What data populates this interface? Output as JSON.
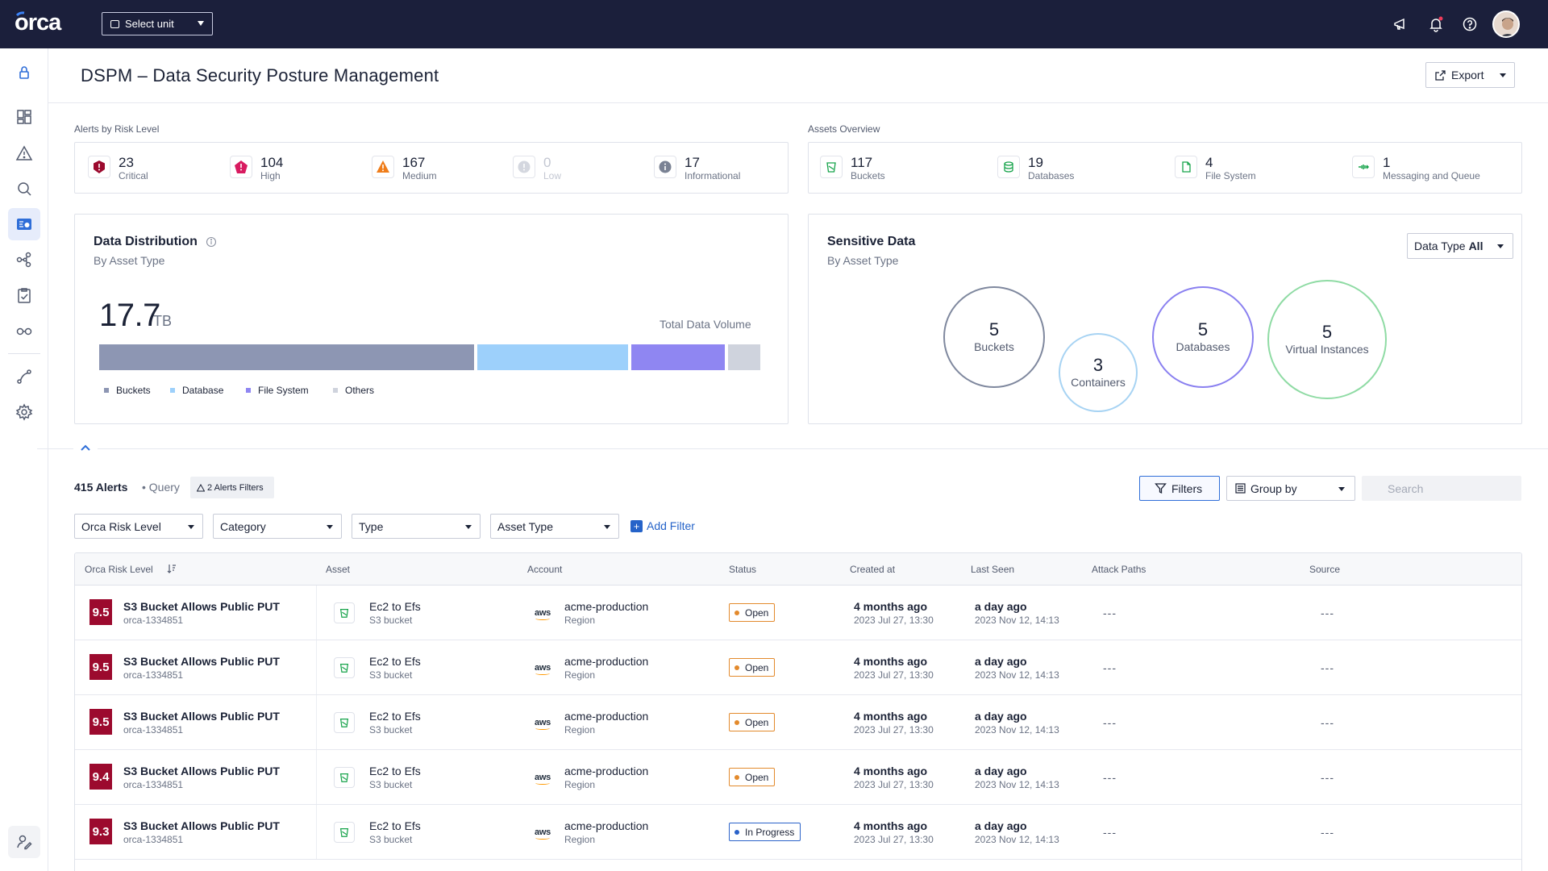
{
  "app": {
    "logo_text": "orca",
    "unit_select_label": "Select unit"
  },
  "topbar_icons": [
    "megaphone-icon",
    "bell-icon",
    "help-icon",
    "avatar"
  ],
  "sidebar": [
    "lock-icon",
    "dashboard-icon",
    "alert-icon",
    "search-icon",
    "dspm-icon",
    "graph-icon",
    "compliance-icon",
    "discovery-icon",
    "integrations-icon",
    "settings-icon",
    "user-settings-icon"
  ],
  "page": {
    "title": "DSPM – Data Security Posture Management",
    "export_label": "Export"
  },
  "alerts_by_risk": {
    "label": "Alerts by Risk Level",
    "items": [
      {
        "value": "23",
        "label": "Critical",
        "color": "#9c0a2e"
      },
      {
        "value": "104",
        "label": "High",
        "color": "#d81b60"
      },
      {
        "value": "167",
        "label": "Medium",
        "color": "#ef7d1a"
      },
      {
        "value": "0",
        "label": "Low",
        "color": "#c3c7d2"
      },
      {
        "value": "17",
        "label": "Informational",
        "color": "#7a8294"
      }
    ]
  },
  "assets_overview": {
    "label": "Assets Overview",
    "items": [
      {
        "value": "117",
        "label": "Buckets"
      },
      {
        "value": "19",
        "label": "Databases"
      },
      {
        "value": "4",
        "label": "File System"
      },
      {
        "value": "1",
        "label": "Messaging and Queue"
      }
    ]
  },
  "data_distribution": {
    "title": "Data Distribution",
    "subtitle": "By Asset Type",
    "total_value": "17.7",
    "total_unit": "TB",
    "total_label": "Total Data Volume",
    "segments": [
      {
        "label": "Buckets",
        "share": 0.575,
        "color": "#8d96b3"
      },
      {
        "label": "Database",
        "share": 0.232,
        "color": "#9dd0fb"
      },
      {
        "label": "File System",
        "share": 0.143,
        "color": "#8f86f2"
      },
      {
        "label": "Others",
        "share": 0.05,
        "color": "#cfd3dd"
      }
    ]
  },
  "sensitive_data": {
    "title": "Sensitive Data",
    "subtitle": "By Asset Type",
    "filter_prefix": "Data Type",
    "filter_value": "All",
    "bubbles": [
      {
        "value": "5",
        "label": "Buckets",
        "color": "#7f889e"
      },
      {
        "value": "3",
        "label": "Containers",
        "color": "#a7d3f3"
      },
      {
        "value": "5",
        "label": "Databases",
        "color": "#8a80f0"
      },
      {
        "value": "5",
        "label": "Virtual Instances",
        "color": "#8fdba4"
      }
    ]
  },
  "alerts_list": {
    "count_label": "415 Alerts",
    "query_label": "• Query",
    "filters_pill": "2 Alerts Filters",
    "filters_button": "Filters",
    "group_by": "Group by",
    "search_placeholder": "Search",
    "filter_selects": [
      "Orca Risk Level",
      "Category",
      "Type",
      "Asset Type"
    ],
    "add_filter": "Add Filter",
    "columns": [
      "Orca Risk Level",
      "Asset",
      "Account",
      "Status",
      "Created at",
      "Last Seen",
      "Attack Paths",
      "Source"
    ],
    "rows": [
      {
        "score": "9.5",
        "title": "S3 Bucket Allows Public PUT",
        "id": "orca-1334851",
        "asset": "Ec2 to Efs",
        "asset_type": "S3 bucket",
        "account": "acme-production",
        "region": "Region",
        "status": "Open",
        "created": "4 months ago",
        "created_date": "2023 Jul 27, 13:30",
        "seen": "a day ago",
        "seen_date": "2023 Nov 12, 14:13",
        "attack_paths": "---",
        "source": "---"
      },
      {
        "score": "9.5",
        "title": "S3 Bucket Allows Public PUT",
        "id": "orca-1334851",
        "asset": "Ec2 to Efs",
        "asset_type": "S3 bucket",
        "account": "acme-production",
        "region": "Region",
        "status": "Open",
        "created": "4 months ago",
        "created_date": "2023 Jul 27, 13:30",
        "seen": "a day ago",
        "seen_date": "2023 Nov 12, 14:13",
        "attack_paths": "---",
        "source": "---"
      },
      {
        "score": "9.5",
        "title": "S3 Bucket Allows Public PUT",
        "id": "orca-1334851",
        "asset": "Ec2 to Efs",
        "asset_type": "S3 bucket",
        "account": "acme-production",
        "region": "Region",
        "status": "Open",
        "created": "4 months ago",
        "created_date": "2023 Jul 27, 13:30",
        "seen": "a day ago",
        "seen_date": "2023 Nov 12, 14:13",
        "attack_paths": "---",
        "source": "---"
      },
      {
        "score": "9.4",
        "title": "S3 Bucket Allows Public PUT",
        "id": "orca-1334851",
        "asset": "Ec2 to Efs",
        "asset_type": "S3 bucket",
        "account": "acme-production",
        "region": "Region",
        "status": "Open",
        "created": "4 months ago",
        "created_date": "2023 Jul 27, 13:30",
        "seen": "a day ago",
        "seen_date": "2023 Nov 12, 14:13",
        "attack_paths": "---",
        "source": "---"
      },
      {
        "score": "9.3",
        "title": "S3 Bucket Allows Public PUT",
        "id": "orca-1334851",
        "asset": "Ec2 to Efs",
        "asset_type": "S3 bucket",
        "account": "acme-production",
        "region": "Region",
        "status": "In Progress",
        "created": "4 months ago",
        "created_date": "2023 Jul 27, 13:30",
        "seen": "a day ago",
        "seen_date": "2023 Nov 12, 14:13",
        "attack_paths": "---",
        "source": "---"
      }
    ]
  }
}
